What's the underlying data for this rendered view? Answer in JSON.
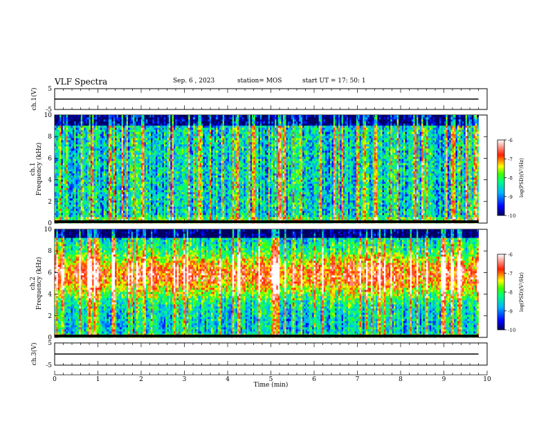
{
  "header": {
    "title": "VLF Spectra",
    "date": "Sep. 6 , 2023",
    "station": "station= MOS",
    "start": "start UT = 17: 50: 1"
  },
  "chart_data": [
    {
      "type": "line",
      "id": "ch1-voltage",
      "ylabel": "ch.1(V)",
      "x": [
        0,
        1,
        2,
        3,
        4,
        5,
        6,
        7,
        8,
        9,
        9.8
      ],
      "y": [
        0,
        0,
        0,
        0,
        0,
        0,
        0,
        0,
        0,
        0,
        0
      ],
      "xlim": [
        0,
        10
      ],
      "ylim": [
        -5,
        5
      ],
      "yticks": [
        "5",
        "-5"
      ]
    },
    {
      "type": "heatmap",
      "id": "ch1-spectrogram",
      "ylabel": "ch.1",
      "ylabel2": "Frequency (kHz)",
      "xlim": [
        0,
        10
      ],
      "ylim": [
        0,
        10
      ],
      "xdata_end": 9.8,
      "yticks": [
        "0",
        "2",
        "4",
        "6",
        "8",
        "10"
      ],
      "colorbar": {
        "label": "log(PSD)(V²/Hz)",
        "range": [
          -10,
          -6
        ],
        "ticks": [
          "-6",
          "-7",
          "-8",
          "-9",
          "-10"
        ]
      }
    },
    {
      "type": "heatmap",
      "id": "ch2-spectrogram",
      "ylabel": "ch.2",
      "ylabel2": "Frequency (kHz)",
      "xlim": [
        0,
        10
      ],
      "ylim": [
        0,
        10
      ],
      "xdata_end": 9.8,
      "yticks": [
        "0",
        "2",
        "4",
        "6",
        "8",
        "10"
      ],
      "colorbar": {
        "label": "log(PSD)(V²/Hz)",
        "range": [
          -10,
          -6
        ],
        "ticks": [
          "-6",
          "-7",
          "-8",
          "-9",
          "-10"
        ]
      }
    },
    {
      "type": "line",
      "id": "ch3-voltage",
      "ylabel": "ch.3(V)",
      "x": [
        0,
        1,
        2,
        3,
        4,
        5,
        6,
        7,
        8,
        9,
        9.8
      ],
      "y": [
        0,
        0,
        0,
        0,
        0,
        0,
        0,
        0,
        0,
        0,
        0
      ],
      "xlim": [
        0,
        10
      ],
      "ylim": [
        -5,
        5
      ],
      "yticks": [
        "5",
        "-5"
      ],
      "xlabel": "Time (min)",
      "xticks": [
        "0",
        "1",
        "2",
        "3",
        "4",
        "5",
        "6",
        "7",
        "8",
        "9",
        "10"
      ]
    }
  ]
}
